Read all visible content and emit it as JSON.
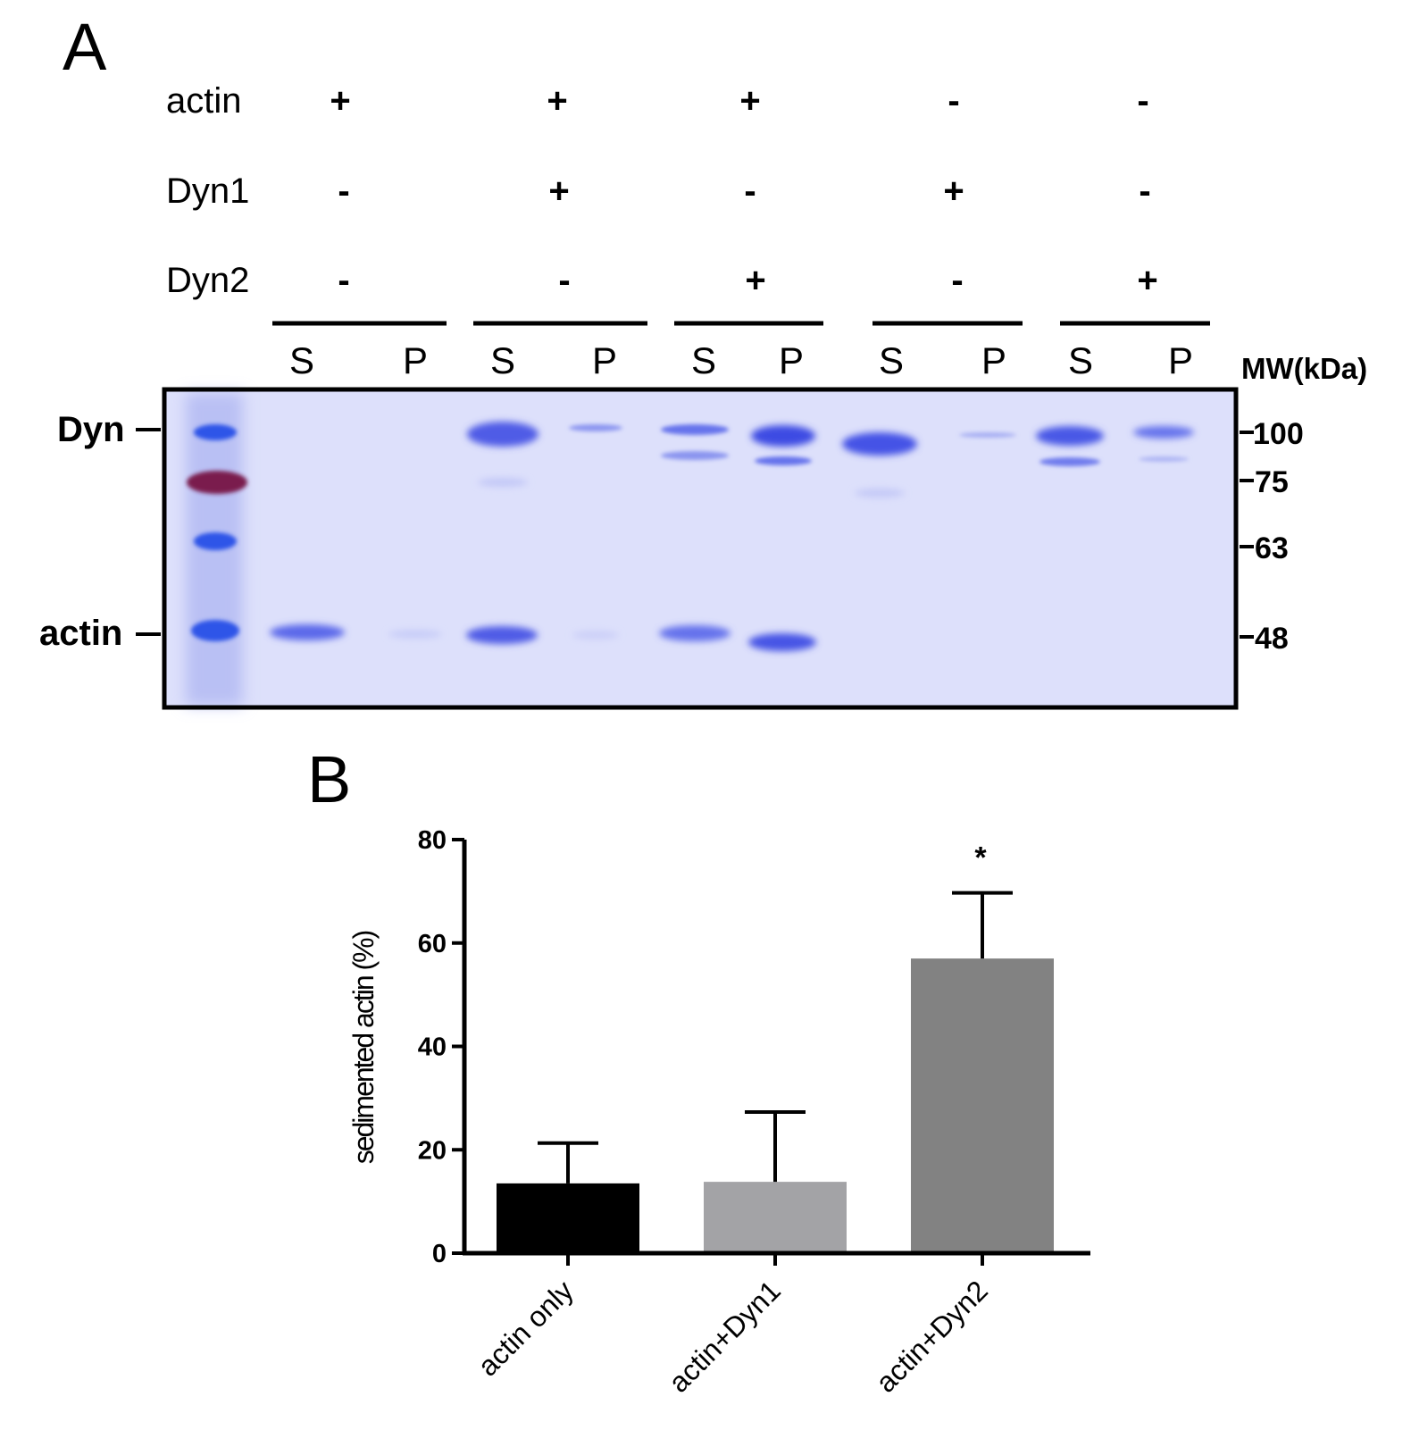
{
  "panels": {
    "a_label": "A",
    "b_label": "B"
  },
  "gel": {
    "conditions": [
      {
        "name": "actin",
        "signs": [
          "+",
          "+",
          "+",
          "-",
          "-"
        ]
      },
      {
        "name": "Dyn1",
        "signs": [
          "-",
          "+",
          "-",
          "+",
          "-"
        ]
      },
      {
        "name": "Dyn2",
        "signs": [
          "-",
          "-",
          "+",
          "-",
          "+"
        ]
      }
    ],
    "lane_labels": [
      "S",
      "P",
      "S",
      "P",
      "S",
      "P",
      "S",
      "P",
      "S",
      "P"
    ],
    "mw_title": "MW(kDa)",
    "mw_markers": [
      "100",
      "75",
      "63",
      "48"
    ],
    "band_labels": {
      "dyn": "Dyn",
      "actin": "actin"
    },
    "colors": {
      "gel_background": "#dde0fb",
      "band": "#4f5ce6",
      "ladder_75": "#7a1b4e"
    }
  },
  "chart_data": {
    "type": "bar",
    "categories": [
      "actin only",
      "actin+Dyn1",
      "actin+Dyn2"
    ],
    "values": [
      13.5,
      13.8,
      57.0
    ],
    "errors": [
      7.8,
      13.5,
      12.7
    ],
    "colors": [
      "#000000",
      "#a3a3a6",
      "#828282"
    ],
    "ylabel": "sedimented actin (%)",
    "xlabel": "",
    "ylim": [
      0,
      80
    ],
    "yticks": [
      "0",
      "20",
      "40",
      "60",
      "80"
    ],
    "annotations": [
      {
        "category": "actin+Dyn2",
        "text": "*"
      }
    ],
    "grid": false
  }
}
